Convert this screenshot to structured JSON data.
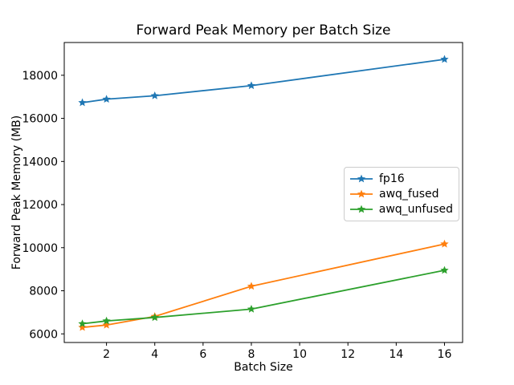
{
  "chart_data": {
    "type": "line",
    "title": "Forward Peak Memory per Batch Size",
    "xlabel": "Batch Size",
    "ylabel": "Forward Peak Memory (MB)",
    "x": [
      1,
      2,
      4,
      8,
      16
    ],
    "series": [
      {
        "name": "fp16",
        "color": "#1f77b4",
        "values": [
          16730,
          16890,
          17050,
          17520,
          18740
        ]
      },
      {
        "name": "awq_fused",
        "color": "#ff7f0e",
        "values": [
          6300,
          6410,
          6810,
          8210,
          10170
        ]
      },
      {
        "name": "awq_unfused",
        "color": "#2ca02c",
        "values": [
          6470,
          6600,
          6760,
          7150,
          8950
        ]
      }
    ],
    "marker": "star",
    "grid": false,
    "legend_position": "center-right",
    "xticks": [
      2,
      4,
      6,
      8,
      10,
      12,
      14,
      16
    ],
    "yticks": [
      6000,
      8000,
      10000,
      12000,
      14000,
      16000,
      18000
    ],
    "xlim": [
      0.25,
      16.75
    ],
    "ylim": [
      5600,
      19520
    ],
    "axis_color": "#000000",
    "background_color": "#ffffff"
  }
}
